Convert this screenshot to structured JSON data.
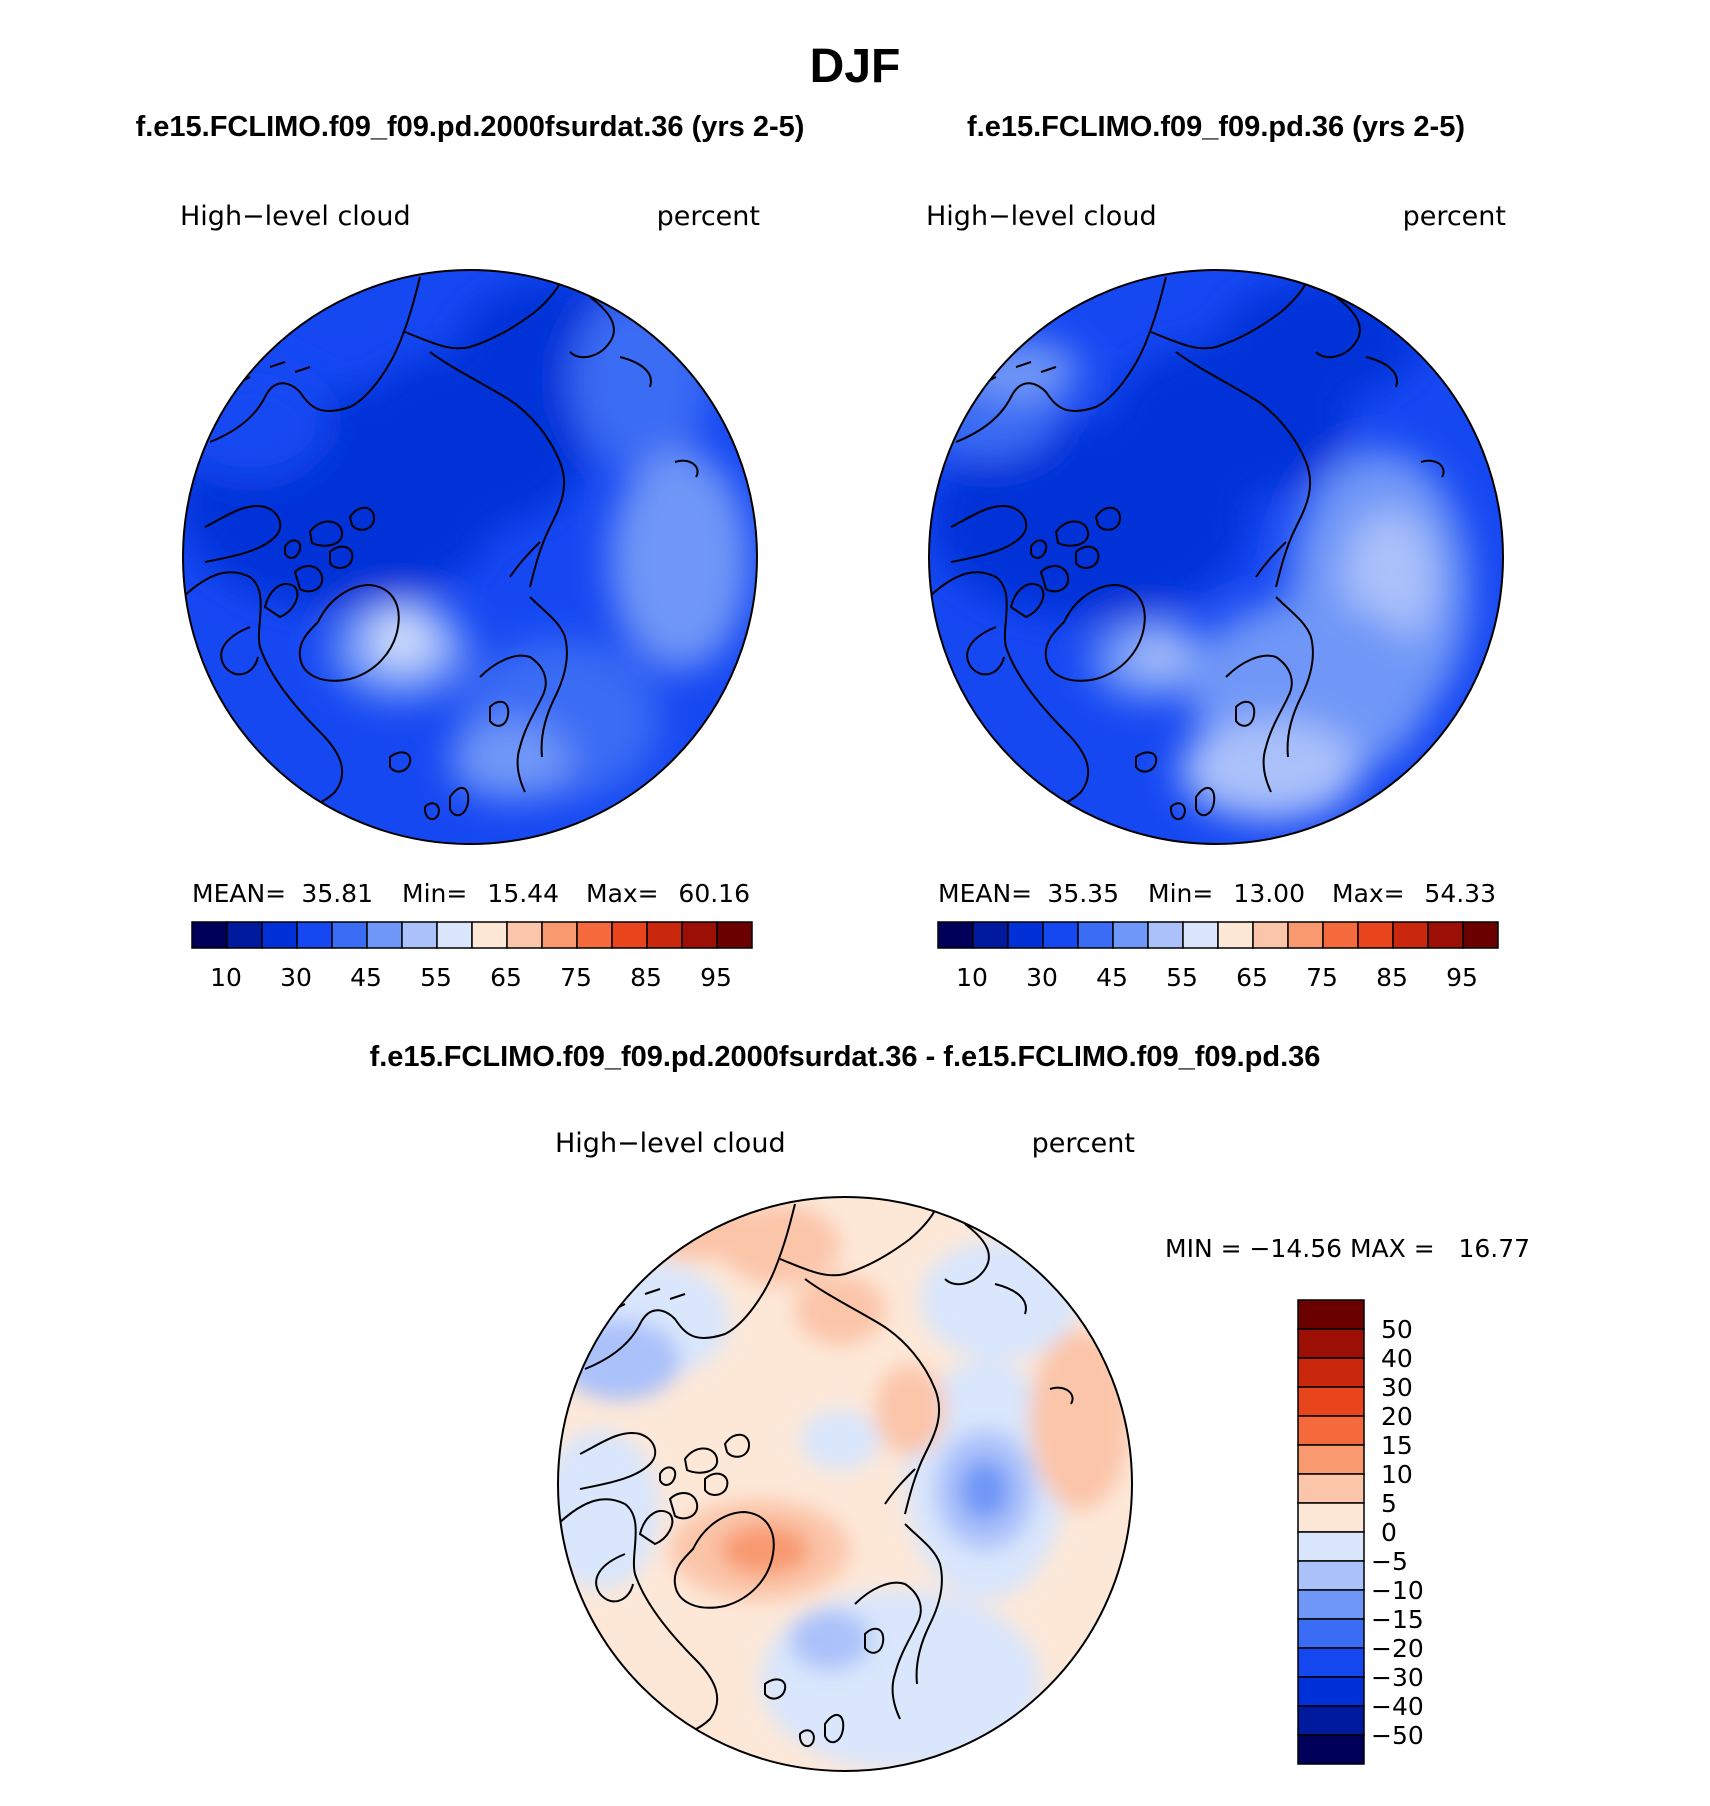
{
  "page_title": "DJF",
  "colors": {
    "abs_scale": [
      "#00005a",
      "#001a9e",
      "#0030d8",
      "#1648f2",
      "#3a6cf4",
      "#6f97f7",
      "#aac1fa",
      "#d9e6fc",
      "#fde8d8",
      "#fbc5a9",
      "#f8996f",
      "#f46a3c",
      "#e8451c",
      "#c9280c",
      "#9c0f05",
      "#6a0000"
    ],
    "diff_scale": [
      "#00005a",
      "#001a9e",
      "#0030d8",
      "#1648f2",
      "#3a6cf4",
      "#6f97f7",
      "#aac1fa",
      "#d9e6fc",
      "#fde8d8",
      "#fbc5a9",
      "#f8996f",
      "#f46a3c",
      "#e8451c",
      "#c9280c",
      "#9c0f05",
      "#6a0000"
    ],
    "coast": "#000000"
  },
  "chart_data": [
    {
      "type": "heatmap",
      "projection": "north-polar-stereographic",
      "title": "f.e15.FCLIMO.f09_f09.pd.2000fsurdat.36 (yrs 2-5)",
      "left_label": "High−level cloud",
      "right_label": "percent",
      "stats": {
        "mean_label": "MEAN=",
        "mean": "35.81",
        "min_label": "Min=",
        "min": "15.44",
        "max_label": "Max=",
        "max": "60.16"
      },
      "colorbar": {
        "orientation": "horizontal",
        "tick_labels": [
          "10",
          "30",
          "45",
          "55",
          "65",
          "75",
          "85",
          "95"
        ],
        "levels": [
          5,
          10,
          20,
          30,
          40,
          45,
          50,
          55,
          60,
          65,
          70,
          75,
          80,
          85,
          90,
          95
        ]
      }
    },
    {
      "type": "heatmap",
      "projection": "north-polar-stereographic",
      "title": "f.e15.FCLIMO.f09_f09.pd.36 (yrs 2-5)",
      "left_label": "High−level cloud",
      "right_label": "percent",
      "stats": {
        "mean_label": "MEAN=",
        "mean": "35.35",
        "min_label": "Min=",
        "min": "13.00",
        "max_label": "Max=",
        "max": "54.33"
      },
      "colorbar": {
        "orientation": "horizontal",
        "tick_labels": [
          "10",
          "30",
          "45",
          "55",
          "65",
          "75",
          "85",
          "95"
        ],
        "levels": [
          5,
          10,
          20,
          30,
          40,
          45,
          50,
          55,
          60,
          65,
          70,
          75,
          80,
          85,
          90,
          95
        ]
      }
    },
    {
      "type": "heatmap",
      "projection": "north-polar-stereographic",
      "title": "f.e15.FCLIMO.f09_f09.pd.2000fsurdat.36 - f.e15.FCLIMO.f09_f09.pd.36",
      "left_label": "High−level cloud",
      "right_label": "percent",
      "stats_text": "MIN = −14.56 MAX =   16.77",
      "stats": {
        "min": -14.56,
        "max": 16.77
      },
      "colorbar": {
        "orientation": "vertical",
        "tick_labels": [
          "50",
          "40",
          "30",
          "20",
          "15",
          "10",
          "5",
          "0",
          "−5",
          "−10",
          "−15",
          "−20",
          "−30",
          "−40",
          "−50"
        ]
      }
    }
  ]
}
